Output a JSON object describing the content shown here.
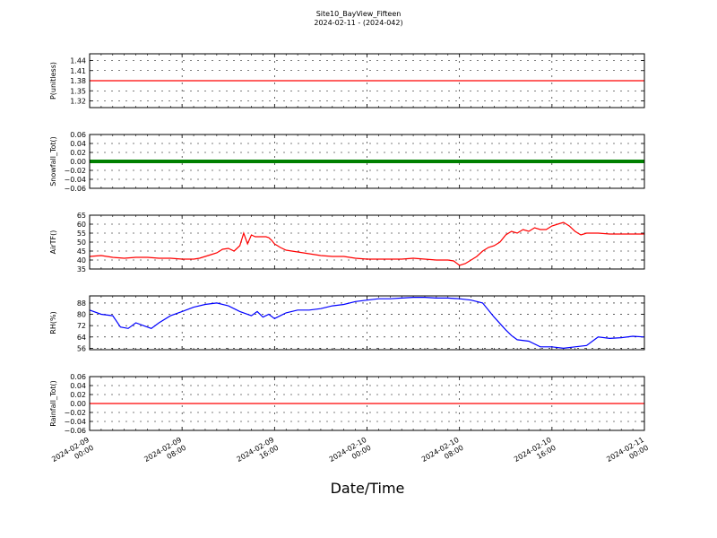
{
  "header": {
    "title": "Site10_BayView_Fifteen",
    "subtitle": "2024-02-11 - (2024-042)"
  },
  "xaxis": {
    "label": "Date/Time",
    "range": [
      "2024-02-09 00:00",
      "2024-02-11 00:00"
    ],
    "ticks": [
      {
        "value": "2024-02-09 00:00",
        "label_date": "2024-02-09",
        "label_time": "00:00"
      },
      {
        "value": "2024-02-09 08:00",
        "label_date": "2024-02-09",
        "label_time": "08:00"
      },
      {
        "value": "2024-02-09 16:00",
        "label_date": "2024-02-09",
        "label_time": "16:00"
      },
      {
        "value": "2024-02-10 00:00",
        "label_date": "2024-02-10",
        "label_time": "00:00"
      },
      {
        "value": "2024-02-10 08:00",
        "label_date": "2024-02-10",
        "label_time": "08:00"
      },
      {
        "value": "2024-02-10 16:00",
        "label_date": "2024-02-10",
        "label_time": "16:00"
      },
      {
        "value": "2024-02-11 00:00",
        "label_date": "2024-02-11",
        "label_time": "00:00"
      }
    ]
  },
  "chart_data": [
    {
      "type": "line",
      "ylabel": "P(unitless)",
      "ylim": [
        1.3,
        1.46
      ],
      "yticks": [
        "1.44",
        "1.41",
        "1.38",
        "1.35",
        "1.32"
      ],
      "grid": true,
      "series": [
        {
          "color": "#ff0000",
          "x": [
            "2024-02-09 00:00",
            "2024-02-11 00:00"
          ],
          "y": [
            1.38,
            1.38
          ]
        }
      ]
    },
    {
      "type": "line",
      "ylabel": "Snowfall_Tot()",
      "ylim": [
        -0.06,
        0.06
      ],
      "yticks": [
        "0.06",
        "0.04",
        "0.02",
        "0.00",
        "−0.02",
        "−0.04",
        "−0.06"
      ],
      "grid": true,
      "series": [
        {
          "color": "#008000",
          "thick": true,
          "x": [
            "2024-02-09 00:00",
            "2024-02-11 00:00"
          ],
          "y": [
            0,
            0
          ]
        }
      ]
    },
    {
      "type": "line",
      "ylabel": "AirTF()",
      "ylim": [
        35,
        65
      ],
      "yticks": [
        "65",
        "60",
        "55",
        "50",
        "45",
        "40",
        "35"
      ],
      "grid": true,
      "series": [
        {
          "color": "#ff0000",
          "x": [
            "2024-02-09 00:00",
            "2024-02-09 01:00",
            "2024-02-09 02:00",
            "2024-02-09 03:00",
            "2024-02-09 04:00",
            "2024-02-09 05:00",
            "2024-02-09 06:00",
            "2024-02-09 07:00",
            "2024-02-09 08:00",
            "2024-02-09 09:00",
            "2024-02-09 09:30",
            "2024-02-09 10:00",
            "2024-02-09 10:30",
            "2024-02-09 11:00",
            "2024-02-09 11:30",
            "2024-02-09 12:00",
            "2024-02-09 12:30",
            "2024-02-09 13:00",
            "2024-02-09 13:20",
            "2024-02-09 13:40",
            "2024-02-09 14:00",
            "2024-02-09 14:20",
            "2024-02-09 14:40",
            "2024-02-09 15:00",
            "2024-02-09 15:15",
            "2024-02-09 15:30",
            "2024-02-09 15:45",
            "2024-02-09 16:00",
            "2024-02-09 16:15",
            "2024-02-09 16:30",
            "2024-02-09 17:00",
            "2024-02-09 18:00",
            "2024-02-09 19:00",
            "2024-02-09 20:00",
            "2024-02-09 21:00",
            "2024-02-09 22:00",
            "2024-02-09 23:00",
            "2024-02-10 00:00",
            "2024-02-10 01:00",
            "2024-02-10 02:00",
            "2024-02-10 03:00",
            "2024-02-10 04:00",
            "2024-02-10 05:00",
            "2024-02-10 06:00",
            "2024-02-10 07:00",
            "2024-02-10 07:30",
            "2024-02-10 08:00",
            "2024-02-10 08:30",
            "2024-02-10 09:00",
            "2024-02-10 09:30",
            "2024-02-10 10:00",
            "2024-02-10 10:30",
            "2024-02-10 11:00",
            "2024-02-10 11:30",
            "2024-02-10 12:00",
            "2024-02-10 12:30",
            "2024-02-10 13:00",
            "2024-02-10 13:30",
            "2024-02-10 14:00",
            "2024-02-10 14:30",
            "2024-02-10 15:00",
            "2024-02-10 15:30",
            "2024-02-10 16:00",
            "2024-02-10 16:30",
            "2024-02-10 17:00",
            "2024-02-10 17:30",
            "2024-02-10 18:00",
            "2024-02-10 18:30",
            "2024-02-10 19:00",
            "2024-02-10 20:00",
            "2024-02-10 21:00",
            "2024-02-10 22:00",
            "2024-02-10 23:00",
            "2024-02-11 00:00"
          ],
          "y": [
            42,
            42.5,
            41.5,
            41,
            41.5,
            41.5,
            41,
            41,
            40.5,
            40.5,
            41,
            42,
            43,
            44,
            46,
            46.5,
            45,
            48,
            55,
            49,
            54,
            53,
            53,
            53,
            53,
            52.5,
            51,
            49,
            48,
            47,
            45.5,
            44.5,
            43.5,
            42.5,
            42,
            42,
            41,
            40.5,
            40.5,
            40.5,
            40.5,
            41,
            40.5,
            40,
            40,
            39.5,
            37,
            38,
            40,
            42,
            45,
            47,
            48,
            50,
            54,
            56,
            55,
            57,
            56,
            58,
            57,
            57,
            59,
            60,
            61,
            59,
            56,
            54,
            55,
            55,
            54.5,
            54.5,
            54.5,
            54.5
          ]
        }
      ]
    },
    {
      "type": "line",
      "ylabel": "RH(%)",
      "ylim": [
        55,
        93
      ],
      "yticks": [
        "88",
        "80",
        "72",
        "64",
        "56"
      ],
      "grid": true,
      "series": [
        {
          "color": "#0000ff",
          "x": [
            "2024-02-09 00:00",
            "2024-02-09 01:00",
            "2024-02-09 02:00",
            "2024-02-09 02:40",
            "2024-02-09 03:20",
            "2024-02-09 04:00",
            "2024-02-09 04:40",
            "2024-02-09 05:20",
            "2024-02-09 06:00",
            "2024-02-09 07:00",
            "2024-02-09 08:00",
            "2024-02-09 09:00",
            "2024-02-09 10:00",
            "2024-02-09 11:00",
            "2024-02-09 12:00",
            "2024-02-09 13:00",
            "2024-02-09 14:00",
            "2024-02-09 14:30",
            "2024-02-09 15:00",
            "2024-02-09 15:30",
            "2024-02-09 16:00",
            "2024-02-09 16:30",
            "2024-02-09 17:00",
            "2024-02-09 18:00",
            "2024-02-09 19:00",
            "2024-02-09 20:00",
            "2024-02-09 21:00",
            "2024-02-09 22:00",
            "2024-02-09 23:00",
            "2024-02-10 00:00",
            "2024-02-10 01:00",
            "2024-02-10 02:00",
            "2024-02-10 03:00",
            "2024-02-10 04:00",
            "2024-02-10 05:00",
            "2024-02-10 06:00",
            "2024-02-10 07:00",
            "2024-02-10 08:00",
            "2024-02-10 09:00",
            "2024-02-10 10:00",
            "2024-02-10 11:00",
            "2024-02-10 12:00",
            "2024-02-10 12:30",
            "2024-02-10 13:00",
            "2024-02-10 14:00",
            "2024-02-10 15:00",
            "2024-02-10 16:00",
            "2024-02-10 17:00",
            "2024-02-10 18:00",
            "2024-02-10 19:00",
            "2024-02-10 20:00",
            "2024-02-10 21:00",
            "2024-02-10 22:00",
            "2024-02-10 23:00",
            "2024-02-11 00:00"
          ],
          "y": [
            83,
            80,
            79,
            71,
            70,
            74,
            72,
            70,
            74,
            79,
            82,
            85,
            87,
            88,
            86,
            82,
            79,
            82,
            78,
            80,
            77,
            79,
            81,
            83,
            83,
            84,
            86,
            87,
            89,
            90,
            91,
            91,
            91.5,
            92,
            92,
            91.5,
            91.5,
            91,
            90,
            88,
            78,
            69,
            65,
            62,
            61,
            57,
            57,
            56,
            57,
            58,
            64,
            63,
            63.5,
            64.5,
            64
          ]
        }
      ]
    },
    {
      "type": "line",
      "ylabel": "Rainfall_Tot()",
      "ylim": [
        -0.06,
        0.06
      ],
      "yticks": [
        "0.06",
        "0.04",
        "0.02",
        "0.00",
        "−0.02",
        "−0.04",
        "−0.06"
      ],
      "grid": true,
      "series": [
        {
          "color": "#ff0000",
          "x": [
            "2024-02-09 00:00",
            "2024-02-11 00:00"
          ],
          "y": [
            0,
            0
          ]
        }
      ]
    }
  ]
}
